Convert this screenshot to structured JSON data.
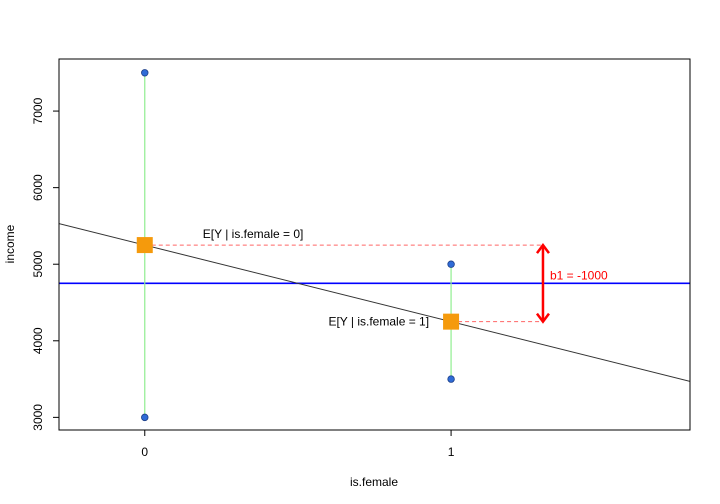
{
  "chart_data": {
    "type": "scatter",
    "xlabel": "is.female",
    "ylabel": "income",
    "xlim": [
      -0.28,
      1.78
    ],
    "ylim": [
      2835,
      7680
    ],
    "x_ticks": [
      0,
      1
    ],
    "x_tick_labels": [
      "0",
      "1"
    ],
    "y_ticks": [
      3000,
      4000,
      5000,
      6000,
      7000
    ],
    "y_tick_labels": [
      "3000",
      "4000",
      "5000",
      "6000",
      "7000"
    ],
    "grid": false,
    "legend": "none",
    "points": [
      {
        "x": 0,
        "y": 7500
      },
      {
        "x": 0,
        "y": 3000
      },
      {
        "x": 1,
        "y": 5000
      },
      {
        "x": 1,
        "y": 3500
      }
    ],
    "group_means": [
      {
        "x": 0,
        "y": 5250
      },
      {
        "x": 1,
        "y": 4250
      }
    ],
    "overall_mean": 4750,
    "regression_line": {
      "intercept": 5250,
      "slope": -1000
    },
    "arrow": {
      "x": 1.3,
      "y_from": 5250,
      "y_to": 4250
    },
    "annotations": {
      "mean0_label": "E[Y | is.female = 0]",
      "mean1_label": "E[Y | is.female = 1]",
      "b1_label": "b1 = -1000"
    },
    "colors": {
      "points_fill": "#2f6bd6",
      "points_stroke": "#1d3f88",
      "whisker": "#90ee90",
      "mean_square": "#f59a0c",
      "overall_mean_line": "#0000ff",
      "regression_line": "#333333",
      "dashed": "#ff6666",
      "arrow": "#ff0000",
      "b1_label": "#ff0000"
    }
  }
}
